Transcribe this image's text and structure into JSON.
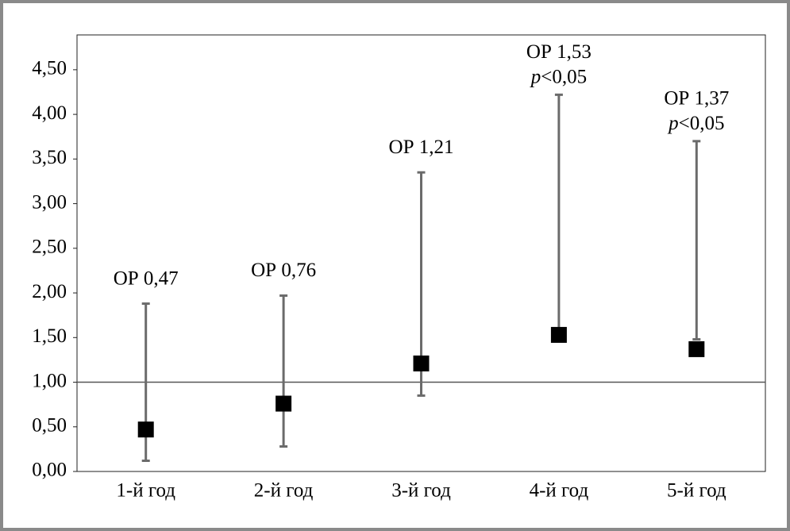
{
  "chart_data": {
    "type": "errorbar",
    "categories": [
      "1-й год",
      "2-й год",
      "3-й год",
      "4-й год",
      "5-й год"
    ],
    "values": [
      0.47,
      0.76,
      1.21,
      1.53,
      1.37
    ],
    "value_labels": [
      "ОР 0,47",
      "ОР 0,76",
      "ОР 1,21",
      "ОР 1,53",
      "ОР 1,37"
    ],
    "ci_lower": [
      0.12,
      0.28,
      0.85,
      1.5,
      1.48
    ],
    "ci_upper": [
      1.88,
      1.97,
      3.35,
      4.22,
      3.7
    ],
    "notes": [
      null,
      null,
      null,
      {
        "italic": "p",
        "text": "<0,05"
      },
      {
        "italic": "p",
        "text": "<0,05"
      }
    ],
    "color": "#000000",
    "whisker_color": "#6b6b6b",
    "reference_line": 1,
    "ylim": [
      0,
      4.89
    ],
    "yticks": [
      {
        "value": 0,
        "label": "0,00"
      },
      {
        "value": 0.5,
        "label": "0,50"
      },
      {
        "value": 1,
        "label": "1,00"
      },
      {
        "value": 1.5,
        "label": "1,50"
      },
      {
        "value": 2,
        "label": "2,00"
      },
      {
        "value": 2.5,
        "label": "2,50"
      },
      {
        "value": 3,
        "label": "3,00"
      },
      {
        "value": 3.5,
        "label": "3,50"
      },
      {
        "value": 4,
        "label": "4,00"
      },
      {
        "value": 4.5,
        "label": "4,50"
      }
    ]
  }
}
